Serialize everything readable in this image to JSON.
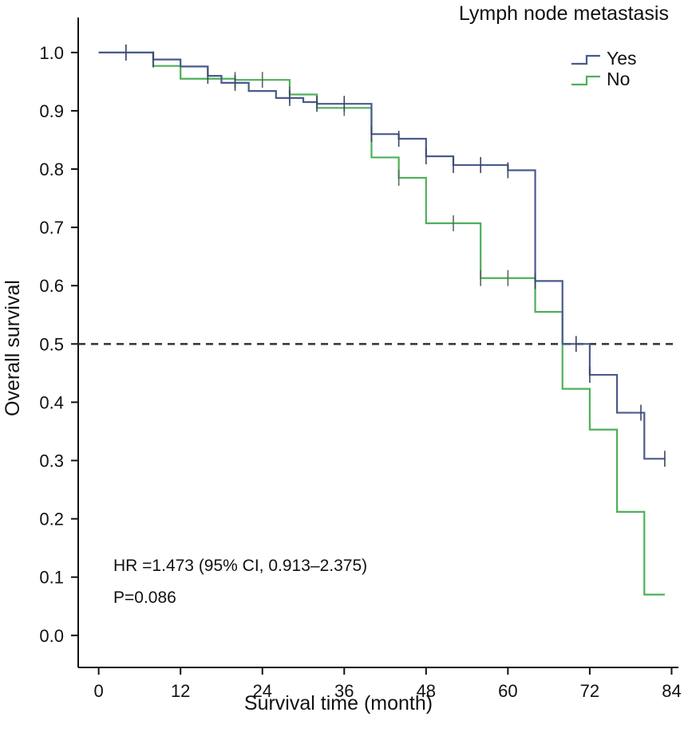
{
  "chart_data": {
    "type": "line",
    "subtype": "kaplan-meier-step",
    "xlabel": "Survival time (month)",
    "ylabel": "Overall survival",
    "xlim": [
      -3,
      85
    ],
    "ylim": [
      -0.055,
      1.06
    ],
    "xticks": [
      0,
      12,
      24,
      36,
      48,
      60,
      72,
      84
    ],
    "yticks": [
      0.0,
      0.1,
      0.2,
      0.3,
      0.4,
      0.5,
      0.6,
      0.7,
      0.8,
      0.9,
      1.0
    ],
    "ytick_labels": [
      "0.0",
      "0.1",
      "0.2",
      "0.3",
      "0.4",
      "0.5",
      "0.6",
      "0.7",
      "0.8",
      "0.9",
      "1.0"
    ],
    "grid": false,
    "legend_title": "Lymph node metastasis",
    "legend_position": "top-right",
    "reference_line": {
      "y": 0.5,
      "style": "dashed",
      "color": "#333333"
    },
    "annotations": [
      "HR =1.473 (95% CI, 0.913–2.375)",
      "P=0.086"
    ],
    "series": [
      {
        "name": "Yes",
        "color": "#4a5a8c",
        "steps": [
          [
            0,
            1.0
          ],
          [
            8,
            0.988
          ],
          [
            12,
            0.976
          ],
          [
            16,
            0.96
          ],
          [
            18,
            0.948
          ],
          [
            22,
            0.934
          ],
          [
            26,
            0.922
          ],
          [
            30,
            0.915
          ],
          [
            32,
            0.912
          ],
          [
            40,
            0.86
          ],
          [
            44,
            0.852
          ],
          [
            48,
            0.822
          ],
          [
            52,
            0.807
          ],
          [
            60,
            0.798
          ],
          [
            64,
            0.608
          ],
          [
            68,
            0.5
          ],
          [
            72,
            0.447
          ],
          [
            76,
            0.382
          ],
          [
            80,
            0.303
          ],
          [
            83,
            0.303
          ]
        ],
        "censor_times": [
          4,
          8,
          16,
          20,
          28,
          32,
          36,
          40,
          44,
          48,
          52,
          56,
          60,
          64,
          70,
          72,
          79.5,
          83
        ]
      },
      {
        "name": "No",
        "color": "#4db05a",
        "steps": [
          [
            0,
            1.0
          ],
          [
            8,
            0.977
          ],
          [
            12,
            0.955
          ],
          [
            20,
            0.953
          ],
          [
            28,
            0.928
          ],
          [
            32,
            0.905
          ],
          [
            40,
            0.82
          ],
          [
            44,
            0.785
          ],
          [
            48,
            0.707
          ],
          [
            56,
            0.613
          ],
          [
            64,
            0.555
          ],
          [
            68,
            0.423
          ],
          [
            72,
            0.353
          ],
          [
            76,
            0.212
          ],
          [
            80,
            0.07
          ],
          [
            83,
            0.07
          ]
        ],
        "censor_times": [
          4,
          20,
          24,
          28,
          36,
          44,
          52,
          56,
          60
        ]
      }
    ]
  }
}
